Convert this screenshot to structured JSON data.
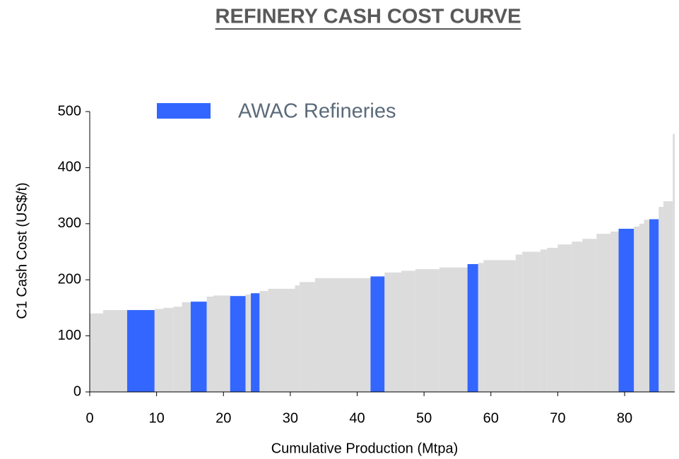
{
  "chart_data": {
    "type": "histogram",
    "title": "REFINERY CASH COST CURVE",
    "x_label": "Cumulative Production (Mtpa)",
    "y_label": "C1 Cash Cost (US$/t)",
    "bins": [
      0,
      2,
      5.6,
      9.7,
      11,
      12.5,
      13.8,
      15.1,
      17.5,
      18.5,
      21,
      23.3,
      24.1,
      25.4,
      26.7,
      30.7,
      31.4,
      33.7,
      42,
      44.1,
      46.6,
      48.7,
      52.3,
      56.5,
      58.1,
      58.9,
      63.7,
      64.7,
      67.4,
      68.4,
      70,
      72.1,
      73.7,
      75.8,
      77.9,
      79.1,
      81.4,
      82.2,
      82.9,
      83.7,
      85.1,
      85.8,
      87.2,
      87.5
    ],
    "values": [
      140,
      146,
      146,
      148,
      150,
      152,
      160,
      161,
      170,
      172,
      171,
      174,
      176,
      180,
      184,
      190,
      196,
      203,
      206,
      213,
      216,
      219,
      222,
      228,
      230,
      235,
      245,
      250,
      254,
      257,
      263,
      268,
      273,
      282,
      286,
      291,
      295,
      300,
      307,
      308,
      330,
      340,
      460
    ],
    "color": "#dcdcdc",
    "colors": [
      "#dcdcdc",
      "#dcdcdc",
      "#3366ff",
      "#dcdcdc",
      "#dcdcdc",
      "#dcdcdc",
      "#dcdcdc",
      "#3366ff",
      "#dcdcdc",
      "#dcdcdc",
      "#3366ff",
      "#dcdcdc",
      "#3366ff",
      "#dcdcdc",
      "#dcdcdc",
      "#dcdcdc",
      "#dcdcdc",
      "#dcdcdc",
      "#3366ff",
      "#dcdcdc",
      "#dcdcdc",
      "#dcdcdc",
      "#dcdcdc",
      "#3366ff",
      "#dcdcdc",
      "#dcdcdc",
      "#dcdcdc",
      "#dcdcdc",
      "#dcdcdc",
      "#dcdcdc",
      "#dcdcdc",
      "#dcdcdc",
      "#dcdcdc",
      "#dcdcdc",
      "#dcdcdc",
      "#3366ff",
      "#dcdcdc",
      "#dcdcdc",
      "#dcdcdc",
      "#3366ff",
      "#dcdcdc",
      "#dcdcdc",
      "#dcdcdc"
    ],
    "series": [
      {
        "name": "AWAC Refineries",
        "color": "#3366ff"
      }
    ],
    "xlim": [
      0,
      87.5
    ],
    "ylim": [
      0,
      500
    ],
    "xticks": [
      0,
      10,
      20,
      30,
      40,
      50,
      60,
      70,
      80
    ],
    "yticks": [
      0,
      100,
      200,
      300,
      400,
      500
    ],
    "grid": false
  }
}
